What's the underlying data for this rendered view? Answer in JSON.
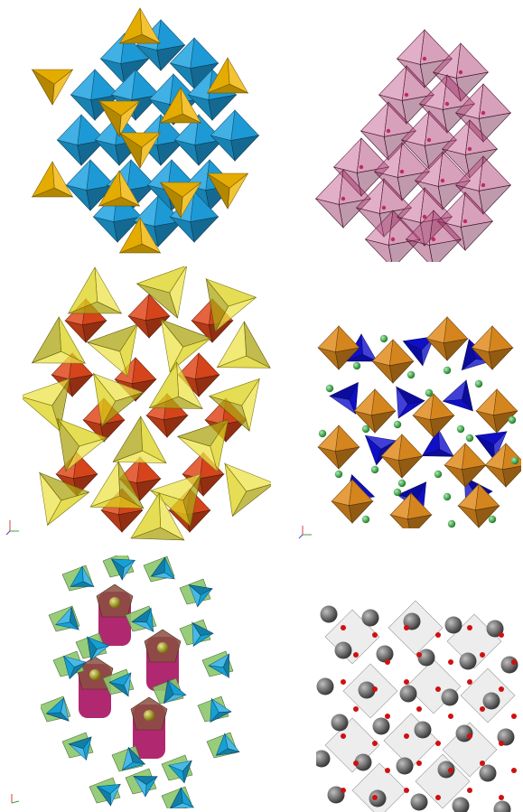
{
  "panels": [
    {
      "id": "a",
      "structure_icon": "polyhedral-framework-tetrahedra-octahedra",
      "colors": {
        "octahedra": "#1ea2e0",
        "tetrahedra": "#f0b400"
      }
    },
    {
      "id": "b",
      "structure_icon": "translucent-octahedral-chain",
      "colors": {
        "polyhedra": "#b0306e",
        "atoms": "#c0286a"
      }
    },
    {
      "id": "c",
      "structure_icon": "interpenetrating-tetrahedral-network",
      "colors": {
        "tetrahedra": "#e8dc1a",
        "octahedra": "#e0481c"
      }
    },
    {
      "id": "d",
      "structure_icon": "octahedra-tetrahedra-with-cations",
      "colors": {
        "octahedra": "#e08c1e",
        "tetrahedra": "#1010d0",
        "atoms": "#30d040"
      }
    },
    {
      "id": "e",
      "structure_icon": "ring-framework-with-channels",
      "colors": {
        "tetrahedra": "#18a8e0",
        "links": "#8cc86c",
        "columns": "#b02870",
        "atoms": "#c8c000"
      }
    },
    {
      "id": "f",
      "structure_icon": "ball-and-stick-lattice",
      "colors": {
        "large_atoms": "#606060",
        "small_atoms": "#d01010",
        "polyhedra": "#cccccc"
      }
    }
  ]
}
